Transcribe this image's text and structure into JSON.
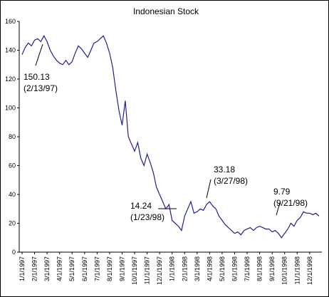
{
  "chart_data": {
    "type": "line",
    "title": "Indonesian Stock",
    "categories": [
      "1/1/1997",
      null,
      null,
      null,
      "2/1/1997",
      null,
      null,
      null,
      "3/1/1997",
      null,
      null,
      null,
      "4/1/1997",
      null,
      null,
      null,
      "5/1/1997",
      null,
      null,
      null,
      "6/1/1997",
      null,
      null,
      null,
      "7/1/1997",
      null,
      null,
      null,
      "8/1/1997",
      null,
      null,
      null,
      "9/1/1997",
      null,
      null,
      null,
      "10/1/1997",
      null,
      null,
      null,
      "11/1/1997",
      null,
      null,
      null,
      "12/1/1997",
      null,
      null,
      null,
      "1/1/1998",
      null,
      null,
      null,
      "2/1/1998",
      null,
      null,
      null,
      "3/1/1998",
      null,
      null,
      null,
      "4/1/1998",
      null,
      null,
      null,
      "5/1/1998",
      null,
      null,
      null,
      "6/1/1998",
      null,
      null,
      null,
      "7/1/1998",
      null,
      null,
      null,
      "8/1/1998",
      null,
      null,
      null,
      "9/1/1998",
      null,
      null,
      null,
      "10/1/1998",
      null,
      null,
      null,
      "11/1/1998",
      null,
      null,
      null,
      "12/1/1998",
      null,
      null,
      null
    ],
    "series": [
      {
        "name": "Indonesian Stock",
        "color": "#1f1f8f",
        "values": [
          137,
          142,
          145,
          143,
          147,
          148,
          146,
          150,
          146,
          140,
          136,
          133,
          131,
          130,
          133,
          130,
          132,
          138,
          143,
          141,
          138,
          135,
          140,
          145,
          146,
          148,
          150,
          145,
          138,
          128,
          112,
          98,
          88,
          105,
          80,
          75,
          70,
          76,
          65,
          60,
          68,
          62,
          55,
          45,
          40,
          35,
          30,
          33,
          22,
          20,
          18,
          15,
          25,
          30,
          35,
          27,
          28,
          30,
          29,
          33,
          35,
          32,
          30,
          25,
          22,
          19,
          17,
          15,
          13,
          14,
          12,
          15,
          16,
          17,
          15,
          17,
          18,
          17,
          16,
          16,
          14,
          15,
          13,
          10,
          13,
          16,
          20,
          18,
          22,
          24,
          28,
          27,
          27,
          26,
          27,
          25
        ]
      }
    ],
    "ylim": [
      0,
      160
    ],
    "yticks": [
      0,
      20,
      40,
      60,
      80,
      100,
      120,
      140,
      160
    ],
    "annotations": [
      {
        "label": "150.13",
        "date": "(2/13/97)"
      },
      {
        "label": "14.24",
        "date": "(1/23/98)"
      },
      {
        "label": "33.18",
        "date": "(3/27/98)"
      },
      {
        "label": "9.79",
        "date": "(9/21/98)"
      }
    ]
  }
}
